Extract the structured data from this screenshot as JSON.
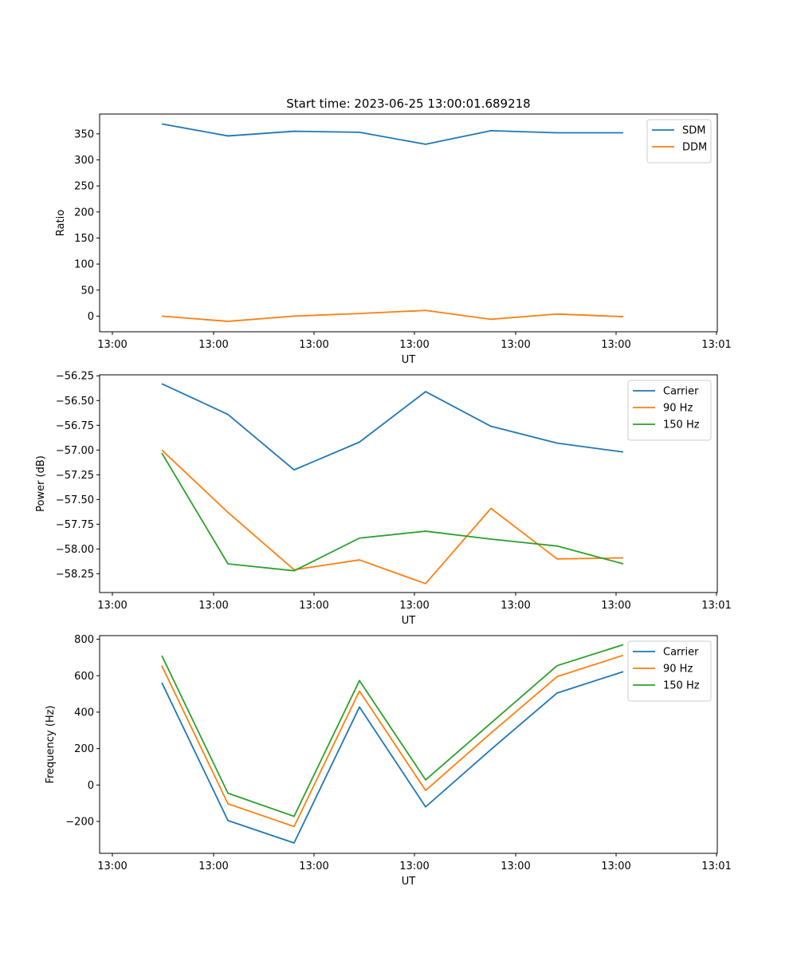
{
  "figure": {
    "title": "Start time: 2023-06-25 13:00:01.689218"
  },
  "colors": {
    "blue": "#1f77b4",
    "orange": "#ff7f0e",
    "green": "#2ca02c"
  },
  "chart_data": [
    {
      "type": "line",
      "title": "Start time: 2023-06-25 13:00:01.689218",
      "xlabel": "UT",
      "ylabel": "Ratio",
      "x_tick_labels": [
        "13:00",
        "13:00",
        "13:00",
        "13:00",
        "13:00",
        "13:00",
        "13:01"
      ],
      "y_ticks": [
        0,
        50,
        100,
        150,
        200,
        250,
        300,
        350
      ],
      "ylim": [
        -30,
        388
      ],
      "legend": "top-right",
      "series": [
        {
          "name": "SDM",
          "color": "blue",
          "values": [
            369,
            346,
            355,
            353,
            330,
            356,
            352,
            352
          ]
        },
        {
          "name": "DDM",
          "color": "orange",
          "values": [
            0,
            -10,
            0,
            5,
            11,
            -6,
            4,
            -1
          ]
        }
      ]
    },
    {
      "type": "line",
      "xlabel": "UT",
      "ylabel": "Power (dB)",
      "x_tick_labels": [
        "13:00",
        "13:00",
        "13:00",
        "13:00",
        "13:00",
        "13:00",
        "13:01"
      ],
      "y_ticks": [
        -56.25,
        -56.5,
        -56.75,
        -57.0,
        -57.25,
        -57.5,
        -57.75,
        -58.0,
        -58.25
      ],
      "y_tick_labels": [
        "−56.25",
        "−56.50",
        "−56.75",
        "−57.00",
        "−57.25",
        "−57.50",
        "−57.75",
        "−58.00",
        "−58.25"
      ],
      "ylim": [
        -58.44,
        -56.24
      ],
      "legend": "top-right",
      "series": [
        {
          "name": "Carrier",
          "color": "blue",
          "values": [
            -56.33,
            -56.64,
            -57.2,
            -56.92,
            -56.41,
            -56.76,
            -56.93,
            -57.02
          ]
        },
        {
          "name": "90 Hz",
          "color": "orange",
          "values": [
            -57.0,
            -57.63,
            -58.21,
            -58.11,
            -58.35,
            -57.59,
            -58.1,
            -58.09
          ]
        },
        {
          "name": "150 Hz",
          "color": "green",
          "values": [
            -57.03,
            -58.15,
            -58.22,
            -57.89,
            -57.82,
            -57.9,
            -57.97,
            -58.15
          ]
        }
      ]
    },
    {
      "type": "line",
      "xlabel": "UT",
      "ylabel": "Frequency (Hz)",
      "x_tick_labels": [
        "13:00",
        "13:00",
        "13:00",
        "13:00",
        "13:00",
        "13:00",
        "13:01"
      ],
      "y_ticks": [
        -200,
        0,
        200,
        400,
        600,
        800
      ],
      "y_tick_labels": [
        "−200",
        "0",
        "200",
        "400",
        "600",
        "800"
      ],
      "ylim": [
        -375,
        820
      ],
      "legend": "top-right",
      "series": [
        {
          "name": "Carrier",
          "color": "blue",
          "values": [
            562,
            -195,
            -318,
            428,
            -120,
            195,
            505,
            622
          ]
        },
        {
          "name": "90 Hz",
          "color": "orange",
          "values": [
            655,
            -103,
            -228,
            516,
            -30,
            285,
            595,
            712
          ]
        },
        {
          "name": "150 Hz",
          "color": "green",
          "values": [
            710,
            -45,
            -172,
            573,
            28,
            340,
            655,
            770
          ]
        }
      ]
    }
  ]
}
